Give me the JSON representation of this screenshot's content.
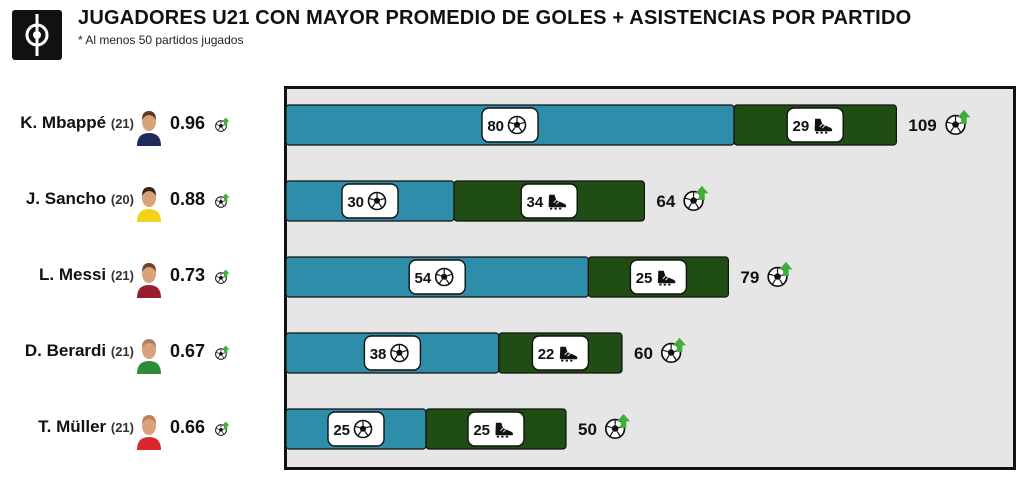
{
  "header": {
    "title": "JUGADORES U21 CON MAYOR PROMEDIO DE GOLES + ASISTENCIAS POR PARTIDO",
    "subtitle": "* Al menos 50 partidos jugados"
  },
  "colors": {
    "goals": "#2e8da8",
    "assists": "#1f4d14",
    "panel_bg": "#e6e6e6",
    "arrow": "#3fae3a"
  },
  "players": [
    {
      "name": "K. Mbappé",
      "age": "(21)",
      "ratio": "0.96",
      "avatar_colors": [
        "#5a3a2a",
        "#1d2a5a"
      ]
    },
    {
      "name": "J. Sancho",
      "age": "(20)",
      "ratio": "0.88",
      "avatar_colors": [
        "#3a2418",
        "#f2d21a"
      ]
    },
    {
      "name": "L. Messi",
      "age": "(21)",
      "ratio": "0.73",
      "avatar_colors": [
        "#6a4530",
        "#9b1b30"
      ]
    },
    {
      "name": "D. Berardi",
      "age": "(21)",
      "ratio": "0.67",
      "avatar_colors": [
        "#b08060",
        "#2f8a3a"
      ]
    },
    {
      "name": "T. Müller",
      "age": "(21)",
      "ratio": "0.66",
      "avatar_colors": [
        "#c08060",
        "#d8282e"
      ]
    }
  ],
  "chart_data": {
    "type": "bar",
    "orientation": "horizontal",
    "stacked": true,
    "categories": [
      "K. Mbappé (21)",
      "J. Sancho (20)",
      "L. Messi (21)",
      "D. Berardi (21)",
      "T. Müller (21)"
    ],
    "series": [
      {
        "values": [
          80,
          30,
          54,
          38,
          25
        ],
        "color": "#2e8da8",
        "icon": "football-icon"
      },
      {
        "values": [
          29,
          34,
          25,
          22,
          25
        ],
        "color": "#1f4d14",
        "icon": "boot-icon"
      }
    ],
    "totals": [
      109,
      64,
      79,
      60,
      50
    ],
    "total_icon": "football-arrow-up-icon",
    "xlim": [
      0,
      130
    ],
    "grid": false,
    "legend": "none",
    "title": "JUGADORES U21 CON MAYOR PROMEDIO DE GOLES + ASISTENCIAS POR PARTIDO",
    "subtitle": "* Al menos 50 partidos jugados"
  }
}
